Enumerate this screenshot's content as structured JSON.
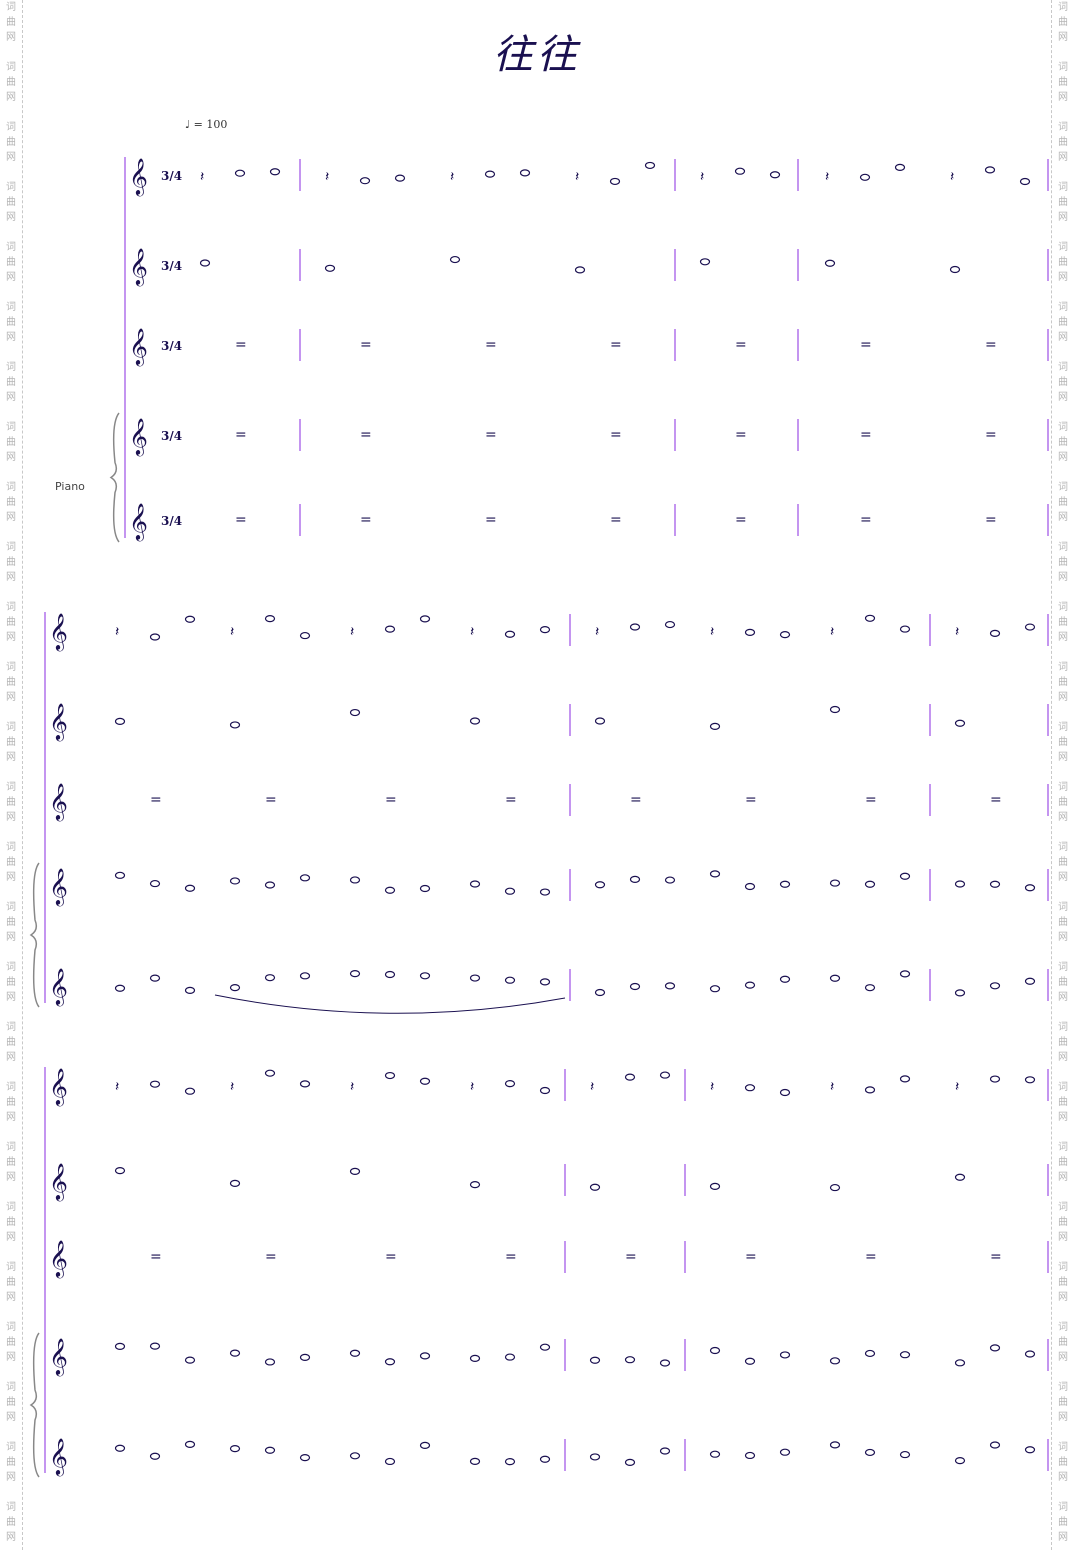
{
  "title": "往往",
  "tempo": "♩ = 100",
  "watermark": "词曲网",
  "credits": [
    "",
    ""
  ],
  "instruments": {
    "piano": "Piano"
  },
  "time_signature": "3/4",
  "colors": {
    "notes": "#1a1050",
    "barline": "#8a2be2",
    "watermark": "#b5b5b5"
  }
}
